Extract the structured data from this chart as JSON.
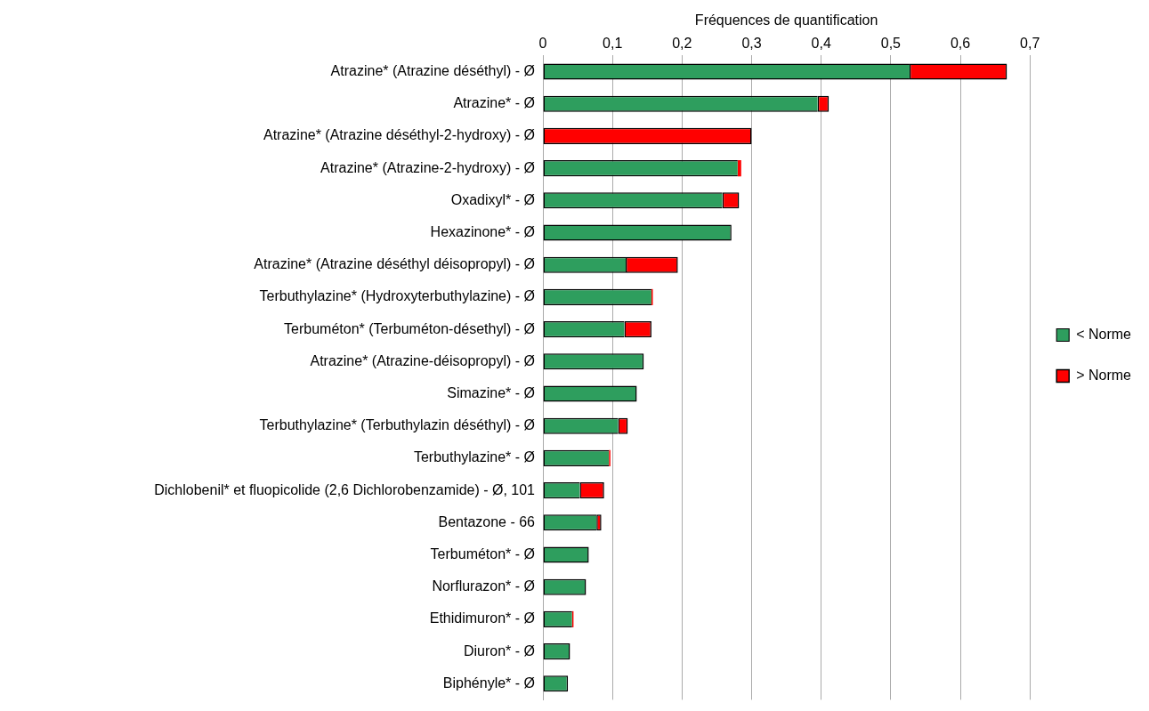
{
  "chart_data": {
    "type": "bar",
    "orientation": "horizontal",
    "stacked": true,
    "xlabel": "Fréquences de quantification",
    "categories": [
      "Atrazine* (Atrazine déséthyl) - Ø",
      "Atrazine* - Ø",
      "Atrazine* (Atrazine déséthyl-2-hydroxy) - Ø",
      "Atrazine* (Atrazine-2-hydroxy) - Ø",
      "Oxadixyl* - Ø",
      "Hexazinone* - Ø",
      "Atrazine* (Atrazine déséthyl déisopropyl) - Ø",
      "Terbuthylazine* (Hydroxyterbuthylazine) - Ø",
      "Terbuméton* (Terbuméton-désethyl) - Ø",
      "Atrazine* (Atrazine-déisopropyl) - Ø",
      "Simazine* - Ø",
      "Terbuthylazine* (Terbuthylazin déséthyl) - Ø",
      "Terbuthylazine* - Ø",
      "Dichlobenil* et fluopicolide (2,6 Dichlorobenzamide) - Ø, 101",
      "Bentazone - 66",
      "Terbuméton* - Ø",
      "Norflurazon* - Ø",
      "Ethidimuron* - Ø",
      "Diuron* - Ø",
      "Biphényle* - Ø"
    ],
    "series": [
      {
        "name": "< Norme",
        "color": "#2e9e5e",
        "values": [
          0.527,
          0.395,
          0,
          0.28,
          0.258,
          0.271,
          0.119,
          0.156,
          0.117,
          0.145,
          0.135,
          0.108,
          0.095,
          0.053,
          0.077,
          0.066,
          0.062,
          0.042,
          0.039,
          0.036
        ]
      },
      {
        "name": "> Norme",
        "color": "#ff0000",
        "values": [
          0.14,
          0.016,
          0.3,
          0.005,
          0.024,
          0,
          0.075,
          0.002,
          0.039,
          0,
          0,
          0.014,
          0.002,
          0.035,
          0.007,
          0,
          0,
          0.002,
          0,
          0
        ]
      }
    ],
    "xlim": [
      0,
      0.7
    ],
    "xticks": [
      0,
      {
        "value": 0.1,
        "label": "0,1"
      },
      {
        "value": 0.2,
        "label": "0,2"
      },
      {
        "value": 0.3,
        "label": "0,3"
      },
      {
        "value": 0.4,
        "label": "0,4"
      },
      {
        "value": 0.5,
        "label": "0,5"
      },
      {
        "value": 0.6,
        "label": "0,6"
      },
      {
        "value": 0.7,
        "label": "0,7"
      }
    ],
    "grid": "x",
    "legend": "right"
  }
}
